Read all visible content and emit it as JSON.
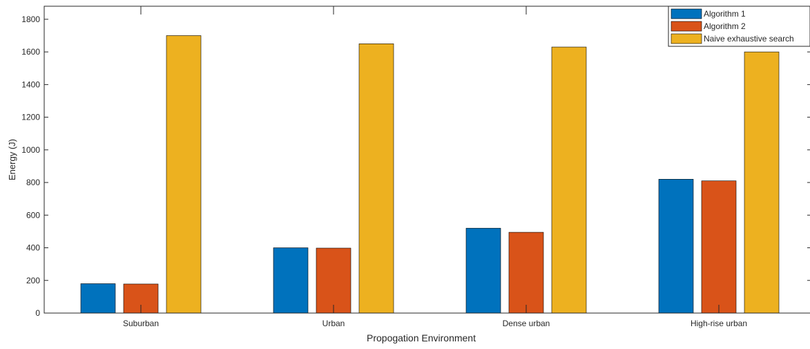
{
  "chart_data": {
    "type": "bar",
    "xlabel": "Propogation Environment",
    "ylabel": "Energy (J)",
    "categories": [
      "Suburban",
      "Urban",
      "Dense urban",
      "High-rise urban"
    ],
    "series": [
      {
        "name": "Algorithm 1",
        "color": "#0072BD",
        "values": [
          180,
          400,
          520,
          820
        ]
      },
      {
        "name": "Algorithm 2",
        "color": "#D95319",
        "values": [
          178,
          398,
          495,
          810
        ]
      },
      {
        "name": "Naive exhaustive search",
        "color": "#EDB120",
        "values": [
          1700,
          1650,
          1630,
          1600
        ]
      }
    ],
    "ylim": [
      0,
      1880
    ],
    "yticks": [
      0,
      200,
      400,
      600,
      800,
      1000,
      1200,
      1400,
      1600,
      1800
    ],
    "grid": false,
    "legend_position": "top-right"
  }
}
